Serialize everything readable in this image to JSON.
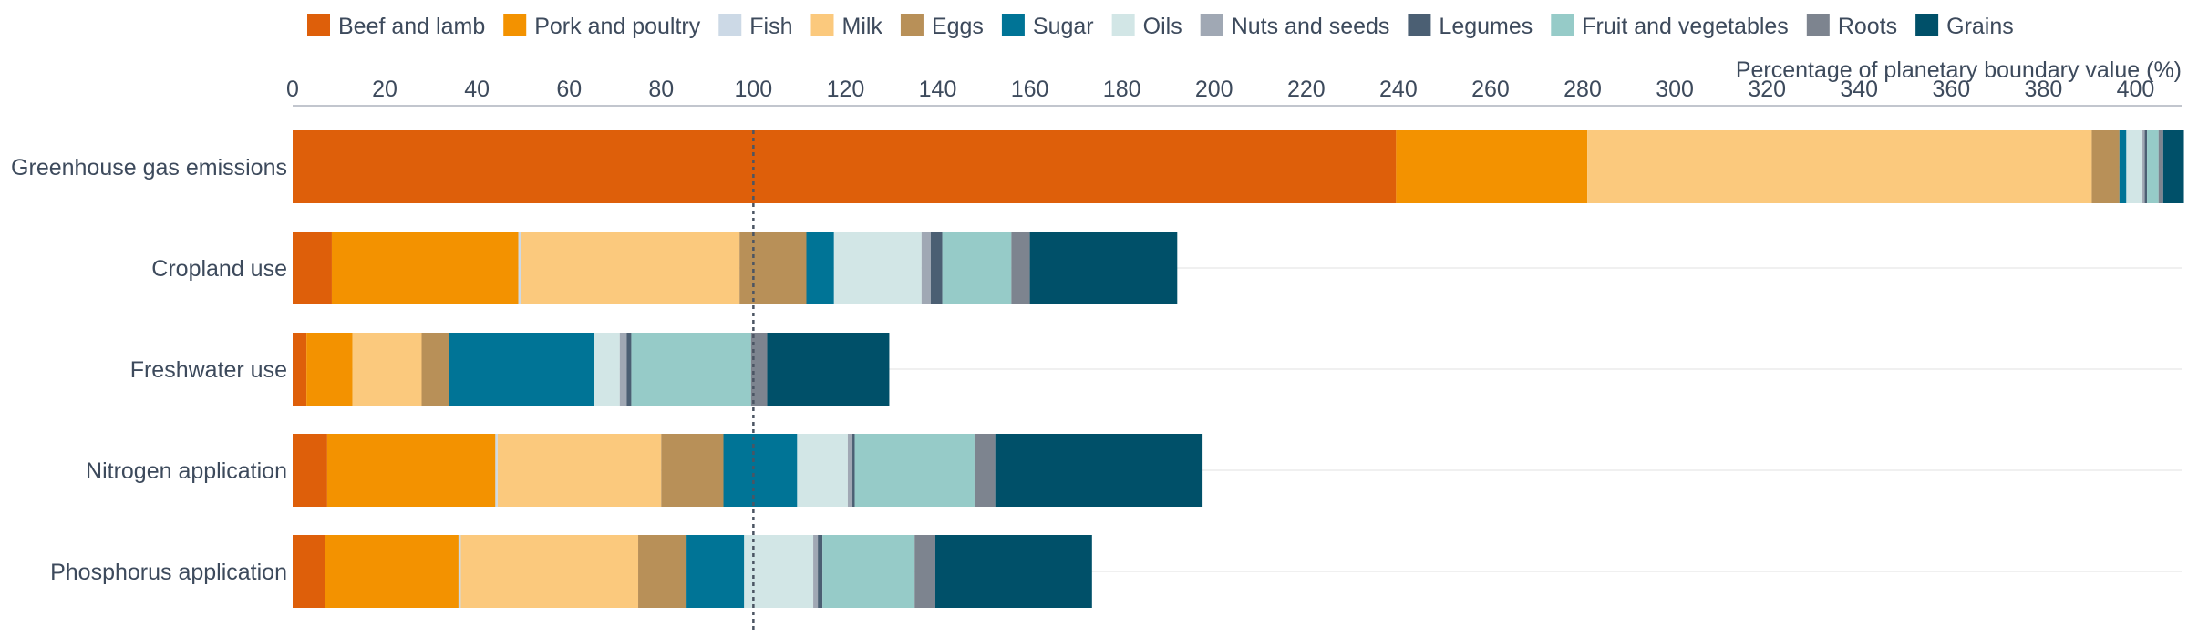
{
  "chart_data": {
    "type": "bar",
    "orientation": "horizontal",
    "stacked": true,
    "xlabel": "Percentage of planetary boundary value (%)",
    "xlim": [
      0,
      410
    ],
    "xticks": [
      0,
      20,
      40,
      60,
      80,
      100,
      120,
      140,
      160,
      180,
      200,
      220,
      240,
      260,
      280,
      300,
      320,
      340,
      360,
      380,
      400
    ],
    "reference_line": 100,
    "legend_position": "top",
    "categories": [
      "Greenhouse gas emissions",
      "Cropland use",
      "Freshwater use",
      "Nitrogen application",
      "Phosphorus application"
    ],
    "series": [
      {
        "name": "Beef and lamb",
        "color": "#de5f0a",
        "values": [
          239.5,
          8.5,
          3,
          7.5,
          7
        ]
      },
      {
        "name": "Pork and poultry",
        "color": "#f39200",
        "values": [
          41.5,
          40.5,
          10,
          36.5,
          29
        ]
      },
      {
        "name": "Fish",
        "color": "#ccd9e6",
        "values": [
          0,
          0.5,
          0,
          0.5,
          0.5
        ]
      },
      {
        "name": "Milk",
        "color": "#fbc97d",
        "values": [
          109.5,
          47.5,
          15,
          35.5,
          38.5
        ]
      },
      {
        "name": "Eggs",
        "color": "#b89058",
        "values": [
          6,
          14.5,
          6,
          13.5,
          10.5
        ]
      },
      {
        "name": "Sugar",
        "color": "#007496",
        "values": [
          1.5,
          6,
          31.5,
          16,
          12.5
        ]
      },
      {
        "name": "Oils",
        "color": "#d2e6e6",
        "values": [
          3.5,
          19,
          5.5,
          11,
          15
        ]
      },
      {
        "name": "Nuts and seeds",
        "color": "#a0a8b4",
        "values": [
          0.5,
          2,
          1.5,
          1,
          1
        ]
      },
      {
        "name": "Legumes",
        "color": "#4b5f73",
        "values": [
          0.5,
          2.5,
          1,
          0.5,
          1
        ]
      },
      {
        "name": "Fruit and vegetables",
        "color": "#96cbc8",
        "values": [
          2.5,
          15,
          26,
          26,
          20
        ]
      },
      {
        "name": "Roots",
        "color": "#7d848f",
        "values": [
          1,
          4,
          3.5,
          4.5,
          4.5
        ]
      },
      {
        "name": "Grains",
        "color": "#005069",
        "values": [
          4.5,
          32,
          26.5,
          45,
          34
        ]
      }
    ]
  }
}
